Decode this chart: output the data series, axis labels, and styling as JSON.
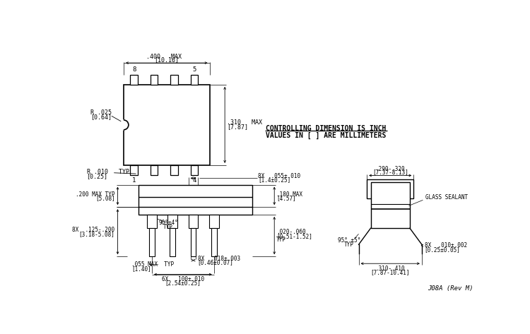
{
  "bg_color": "#ffffff",
  "line_color": "#000000",
  "controlling_text": "CONTROLLING DIMENSION IS INCH",
  "values_text": "VALUES IN [ ] ARE MILLIMETERS",
  "part_number": "J08A (Rev M)"
}
